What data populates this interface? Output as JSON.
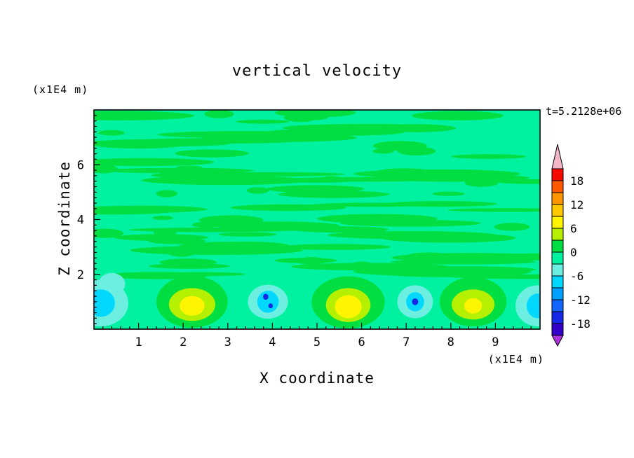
{
  "title": "vertical velocity",
  "time_label": "t=5.2128e+06",
  "axes": {
    "x_label": "X coordinate",
    "x_unit": "(x1E4 m)",
    "y_label": "Z coordinate",
    "y_unit": "(x1E4 m)"
  },
  "chart_data": {
    "type": "heatmap",
    "subtype": "filled-contour",
    "title": "vertical velocity",
    "xlabel": "X coordinate",
    "ylabel": "Z coordinate",
    "x_unit_label": "(x1E4 m)",
    "y_unit_label": "(x1E4 m)",
    "time_annotation": "t=5.2128e+06",
    "xlim": [
      0,
      10
    ],
    "zlim": [
      0,
      8
    ],
    "x_ticks": [
      1,
      2,
      3,
      4,
      5,
      6,
      7,
      8,
      9
    ],
    "y_ticks": [
      2,
      4,
      6
    ],
    "x_minor_step": 0.2,
    "y_minor_step": 0.2,
    "grid": false,
    "legend_position": "right-colorbar",
    "colorbar": {
      "labels": [
        "18",
        "12",
        "6",
        "0",
        "-6",
        "-12",
        "-18"
      ],
      "label_values": [
        18,
        12,
        6,
        0,
        -6,
        -12,
        -18
      ],
      "levels_min": -21,
      "level_step": 3,
      "colors": [
        "#3200C8",
        "#1428E6",
        "#1464FF",
        "#00A0FF",
        "#00D8FF",
        "#6CEEE0",
        "#00F2A0",
        "#00DE41",
        "#B4F000",
        "#FFF500",
        "#FFC800",
        "#FF9600",
        "#FF5A00",
        "#F50A00"
      ],
      "over_color": "#F2B6C6",
      "under_color": "#AA32DC"
    },
    "field": {
      "description": "mostly weak vertical velocity (-3..0 band) aloft with streaky 0..3 patches; row of convective updrafts (yellow) and downdrafts (cyan/blue) below z=2",
      "background_value": -1.5,
      "texture": {
        "streak_value": 1.5,
        "count": 95,
        "zone_z": [
          1.9,
          8
        ]
      },
      "features": [
        {
          "kind": "downdraft",
          "x": 0.15,
          "z": 0.95,
          "peak_value": -8,
          "layers": [
            {
              "value": -4.5,
              "dx": 0,
              "dz": 0,
              "rx": 0.62,
              "ry": 0.85
            },
            {
              "value": -4.5,
              "dx": 0.25,
              "dz": 0.7,
              "rx": 0.3,
              "ry": 0.4
            },
            {
              "value": -7.5,
              "dx": 0,
              "dz": 0,
              "rx": 0.32,
              "ry": 0.5
            }
          ]
        },
        {
          "kind": "updraft",
          "x": 2.2,
          "z": 0.95,
          "peak_value": 8,
          "layers": [
            {
              "value": 1.5,
              "dx": 0,
              "dz": 0.05,
              "rx": 0.8,
              "ry": 0.95
            },
            {
              "value": 4.5,
              "dx": 0,
              "dz": -0.05,
              "rx": 0.52,
              "ry": 0.6
            },
            {
              "value": 7.5,
              "dx": 0,
              "dz": -0.1,
              "rx": 0.28,
              "ry": 0.36
            }
          ]
        },
        {
          "kind": "downdraft",
          "x": 3.9,
          "z": 1.0,
          "peak_value": -17,
          "layers": [
            {
              "value": -4.5,
              "dx": 0,
              "dz": 0,
              "rx": 0.45,
              "ry": 0.62
            },
            {
              "value": -7.5,
              "dx": 0,
              "dz": 0,
              "rx": 0.24,
              "ry": 0.4
            },
            {
              "value": -16.5,
              "dx": -0.05,
              "dz": 0.18,
              "rx": 0.06,
              "ry": 0.11
            },
            {
              "value": -16.5,
              "dx": 0.06,
              "dz": -0.15,
              "rx": 0.05,
              "ry": 0.09
            }
          ]
        },
        {
          "kind": "updraft",
          "x": 5.7,
          "z": 0.9,
          "peak_value": 9,
          "layers": [
            {
              "value": 1.5,
              "dx": 0,
              "dz": 0.08,
              "rx": 0.82,
              "ry": 0.95
            },
            {
              "value": 4.5,
              "dx": 0,
              "dz": -0.02,
              "rx": 0.5,
              "ry": 0.62
            },
            {
              "value": 7.5,
              "dx": 0,
              "dz": -0.08,
              "rx": 0.3,
              "ry": 0.42
            }
          ]
        },
        {
          "kind": "downdraft",
          "x": 7.2,
          "z": 1.0,
          "peak_value": -17,
          "layers": [
            {
              "value": -4.5,
              "dx": 0,
              "dz": 0,
              "rx": 0.4,
              "ry": 0.6
            },
            {
              "value": -7.5,
              "dx": 0,
              "dz": 0,
              "rx": 0.2,
              "ry": 0.35
            },
            {
              "value": -16.5,
              "dx": 0,
              "dz": 0,
              "rx": 0.07,
              "ry": 0.12
            }
          ]
        },
        {
          "kind": "updraft",
          "x": 8.5,
          "z": 0.95,
          "peak_value": 7,
          "layers": [
            {
              "value": 1.5,
              "dx": 0,
              "dz": 0.05,
              "rx": 0.75,
              "ry": 0.9
            },
            {
              "value": 4.5,
              "dx": 0,
              "dz": -0.05,
              "rx": 0.48,
              "ry": 0.55
            },
            {
              "value": 7.5,
              "dx": 0,
              "dz": -0.1,
              "rx": 0.2,
              "ry": 0.28
            }
          ]
        },
        {
          "kind": "downdraft",
          "x": 9.95,
          "z": 0.85,
          "peak_value": -8,
          "layers": [
            {
              "value": -4.5,
              "dx": 0,
              "dz": 0,
              "rx": 0.5,
              "ry": 0.75
            },
            {
              "value": -7.5,
              "dx": 0,
              "dz": 0,
              "rx": 0.25,
              "ry": 0.45
            }
          ]
        }
      ]
    }
  }
}
